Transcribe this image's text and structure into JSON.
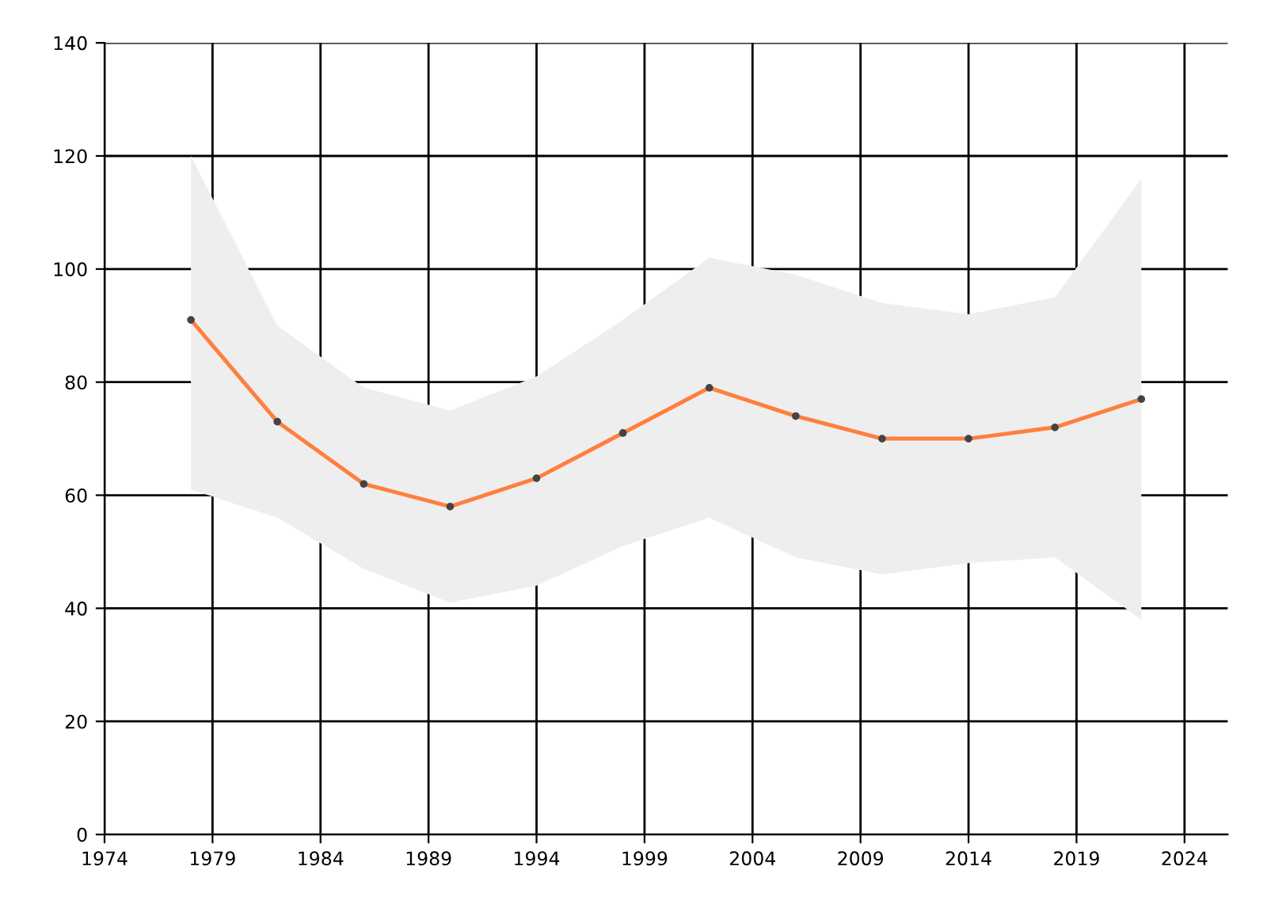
{
  "chart_data": {
    "type": "line",
    "x": [
      1978,
      1982,
      1986,
      1990,
      1994,
      1998,
      2002,
      2006,
      2010,
      2014,
      2018,
      2022
    ],
    "series": [
      {
        "color": "#ff7f3f",
        "values": [
          91,
          73,
          62,
          58,
          63,
          71,
          79,
          74,
          70,
          70,
          72,
          77
        ],
        "lower": [
          61,
          56,
          47,
          41,
          44,
          51,
          56,
          49,
          46,
          48,
          49,
          38
        ],
        "upper": [
          120,
          90,
          79,
          75,
          81,
          91,
          102,
          99,
          94,
          92,
          95,
          116
        ]
      }
    ],
    "xlim": [
      1974,
      2026
    ],
    "xticks": [
      1974,
      1979,
      1984,
      1989,
      1994,
      1999,
      2004,
      2009,
      2014,
      2019,
      2024
    ],
    "ylim": [
      0,
      140
    ],
    "yticks": [
      0,
      20,
      40,
      60,
      80,
      100,
      120,
      140
    ],
    "grid": true,
    "marker": "circle",
    "line_style": "solid"
  }
}
